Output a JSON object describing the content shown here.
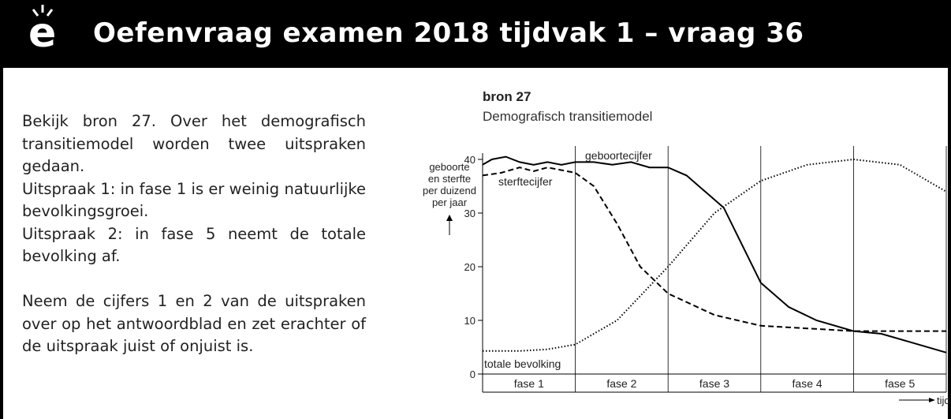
{
  "header": {
    "title": "Oefenvraag examen 2018 tijdvak 1 – vraag 36"
  },
  "text": {
    "paragraphs": [
      [
        "Bekijk bron 27. Over het demografisch transitiemodel worden twee uitspraken gedaan.",
        "Uitspraak 1: in fase 1 is er weinig natuurlijke bevolkingsgroei.",
        "Uitspraak 2: in fase 5 neemt de totale bevolking af."
      ],
      [
        "Neem de cijfers 1 en 2 van de uitspraken over op het antwoordblad en zet erachter of de uitspraak juist of onjuist is."
      ]
    ]
  },
  "source": "bron 27",
  "chart_data": {
    "type": "line",
    "title": "Demografisch transitiemodel",
    "ylabel": [
      "geboorte",
      "en sterfte",
      "per duizend",
      "per jaar"
    ],
    "xlabel": "tijd",
    "phases": [
      "fase 1",
      "fase 2",
      "fase 3",
      "fase 4",
      "fase 5"
    ],
    "xlim": [
      0,
      5
    ],
    "ylim": [
      0,
      40
    ],
    "yticks": [
      0,
      10,
      20,
      30,
      40
    ],
    "series": [
      {
        "name": "geboortecijfer",
        "style": "solid",
        "color": "#000000",
        "x": [
          0,
          0.1,
          0.25,
          0.4,
          0.55,
          0.7,
          0.85,
          1.0,
          1.2,
          1.4,
          1.6,
          1.8,
          2.0,
          2.2,
          2.4,
          2.6,
          2.8,
          3.0,
          3.3,
          3.6,
          4.0,
          4.3,
          4.6,
          5.0
        ],
        "values": [
          39,
          40,
          40.5,
          39.5,
          39,
          39.5,
          39,
          39.5,
          39.5,
          39,
          39.5,
          38.5,
          38.5,
          37,
          34,
          31,
          24,
          17,
          12.5,
          10,
          8,
          7.5,
          6,
          4
        ]
      },
      {
        "name": "sterftecijfer",
        "style": "dashed",
        "color": "#000000",
        "x": [
          0,
          0.2,
          0.4,
          0.55,
          0.7,
          0.85,
          1.0,
          1.2,
          1.45,
          1.7,
          2.0,
          2.5,
          3.0,
          3.5,
          4.0,
          5.0
        ],
        "values": [
          37,
          37.5,
          38.5,
          37.8,
          38.5,
          38,
          37.5,
          35,
          28,
          20,
          15,
          11,
          9,
          8.5,
          8,
          8
        ]
      },
      {
        "name": "totale bevolking",
        "style": "dotted",
        "color": "#000000",
        "x": [
          0,
          0.4,
          0.7,
          1.0,
          1.45,
          2.0,
          2.5,
          3.0,
          3.5,
          4.0,
          4.5,
          5.0
        ],
        "values": [
          4.3,
          4.3,
          4.6,
          5.5,
          10,
          20,
          30,
          36,
          39,
          40,
          39,
          34
        ]
      }
    ]
  }
}
